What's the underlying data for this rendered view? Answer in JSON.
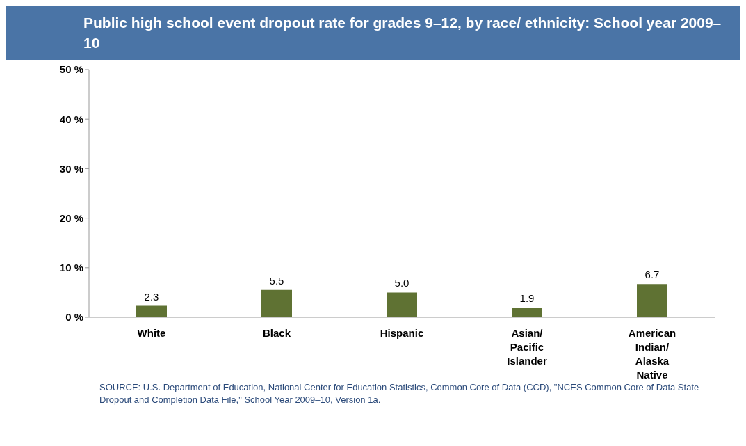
{
  "chart_data": {
    "type": "bar",
    "title": "Public high school event dropout rate for grades 9–12, by race/ ethnicity: School year 2009–10",
    "categories": [
      "White",
      "Black",
      "Hispanic",
      "Asian/Pacific Islander",
      "American Indian/Alaska Native"
    ],
    "values": [
      2.3,
      5.5,
      5.0,
      1.9,
      6.7
    ],
    "color": "#5f7233",
    "value_labels": [
      "2.3",
      "5.5",
      "5.0",
      "1.9",
      "6.7"
    ],
    "ylim": [
      0,
      50
    ],
    "yticks": [
      {
        "value": 0,
        "label": "0 %"
      },
      {
        "value": 10,
        "label": "10 %"
      },
      {
        "value": 20,
        "label": "20 %"
      },
      {
        "value": 30,
        "label": "30 %"
      },
      {
        "value": 40,
        "label": "40 %"
      },
      {
        "value": 50,
        "label": "50 %"
      }
    ],
    "grid": false,
    "legend": false,
    "annotations": [
      "SOURCE:  U.S. Department of Education, National Center for Education Statistics, Common Core of Data (CCD), \"NCES Common Core of Data State Dropout and Completion Data File,\"  School Year 2009–10, Version  1a."
    ]
  }
}
